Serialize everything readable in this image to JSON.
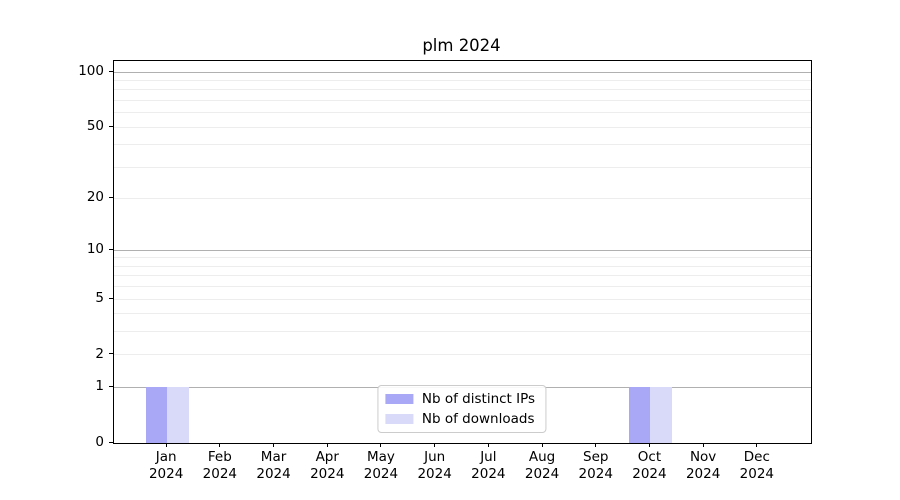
{
  "chart_data": {
    "type": "bar",
    "title": "plm 2024",
    "xlabel": "",
    "ylabel": "",
    "yscale": "log1p",
    "ylim": [
      0,
      115
    ],
    "grid": "horizontal",
    "legend_position": "lower center",
    "categories": [
      {
        "month": "Jan",
        "year": "2024"
      },
      {
        "month": "Feb",
        "year": "2024"
      },
      {
        "month": "Mar",
        "year": "2024"
      },
      {
        "month": "Apr",
        "year": "2024"
      },
      {
        "month": "May",
        "year": "2024"
      },
      {
        "month": "Jun",
        "year": "2024"
      },
      {
        "month": "Jul",
        "year": "2024"
      },
      {
        "month": "Aug",
        "year": "2024"
      },
      {
        "month": "Sep",
        "year": "2024"
      },
      {
        "month": "Oct",
        "year": "2024"
      },
      {
        "month": "Nov",
        "year": "2024"
      },
      {
        "month": "Dec",
        "year": "2024"
      }
    ],
    "series": [
      {
        "name": "Nb of distinct IPs",
        "color": "#a8a8f6",
        "values": [
          1,
          0,
          0,
          0,
          0,
          0,
          0,
          0,
          0,
          1,
          0,
          0
        ]
      },
      {
        "name": "Nb of downloads",
        "color": "#d9d9f9",
        "values": [
          1,
          0,
          0,
          0,
          0,
          0,
          0,
          0,
          0,
          1,
          0,
          0
        ]
      }
    ],
    "yticks_labeled": [
      0,
      1,
      2,
      5,
      10,
      20,
      50,
      100
    ],
    "ygrid_major": [
      1,
      10,
      100
    ],
    "ygrid_minor": [
      2,
      3,
      4,
      5,
      6,
      7,
      8,
      9,
      20,
      30,
      40,
      50,
      60,
      70,
      80,
      90
    ]
  },
  "colors": {
    "major_grid": "#b0b0b0",
    "minor_grid": "#ededed",
    "spine": "#000000",
    "legend_border": "#cccccc",
    "background": "#ffffff"
  }
}
